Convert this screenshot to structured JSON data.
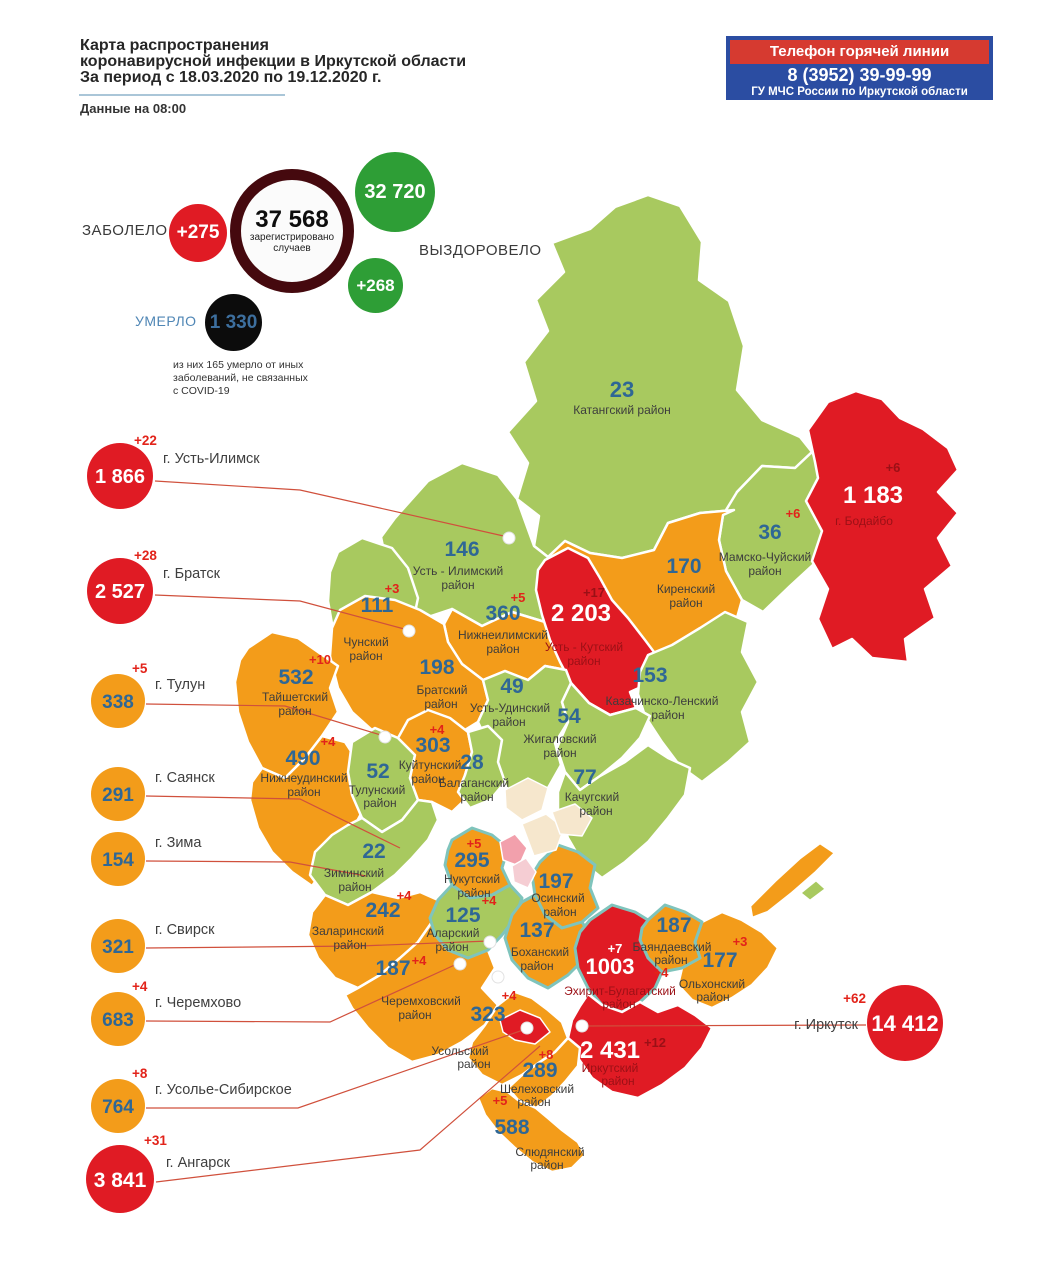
{
  "header": {
    "title": "Карта распространения\nкоронавирусной инфекции в Иркутской области\nЗа период с 18.03.2020 по 19.12.2020 г.",
    "data_note": "Данные на 08:00"
  },
  "hotline": {
    "label": "Телефон горячей линии",
    "phone": "8 (3952) 39-99-99",
    "org": "ГУ МЧС России по Иркутской области",
    "bg_color": "#2b4da2",
    "band_color": "#d63a30"
  },
  "stats": {
    "infected_label": "ЗАБОЛЕЛО",
    "infected_delta": "+275",
    "registered_value": "37 568",
    "registered_caption": "зарегистрировано\nслучаев",
    "recovered_value": "32 720",
    "recovered_label": "ВЫЗДОРОВЕЛО",
    "recovered_delta": "+268",
    "died_label": "УМЕРЛО",
    "died_value": "1 330",
    "died_note": "из них 165 умерло от иных\nзаболеваний, не связанных\nс COVID-19"
  },
  "palette": {
    "low_green": "#a8c95f",
    "medium_orange": "#f39c1a",
    "high_red": "#e01b24",
    "number_blue": "#2f6795",
    "delta_red": "#e2231a",
    "dark_red_text": "#9b1016",
    "uobo_border": "#7fc4bc",
    "hotline_blue": "#2b4da2",
    "ring_maroon": "#45090e"
  },
  "map": {
    "districts": {
      "katangsky": {
        "value": "23",
        "delta": "",
        "line1": "Катангский район",
        "line2": "",
        "fill": "#a8c95f",
        "value_fill": "#2f6795",
        "name_fill": "#3d3d3d",
        "delta_fill": "#e2231a"
      },
      "ust_ilimsky": {
        "value": "146",
        "delta": "",
        "line1": "Усть - Илимский",
        "line2": "район",
        "fill": "#a8c95f",
        "value_fill": "#2f6795",
        "name_fill": "#3d3d3d",
        "delta_fill": "#e2231a"
      },
      "mamsko_chuysky": {
        "value": "36",
        "delta": "+6",
        "line1": "Мамско-Чуйский",
        "line2": "район",
        "fill": "#a8c95f",
        "value_fill": "#2f6795",
        "name_fill": "#3d3d3d",
        "delta_fill": "#e2231a"
      },
      "kirensky": {
        "value": "170",
        "delta": "",
        "line1": "Киренский",
        "line2": "район",
        "fill": "#f39c1a",
        "value_fill": "#2f6795",
        "name_fill": "#3d3d3d",
        "delta_fill": "#e2231a"
      },
      "bodaibinsky": {
        "value": "1 183",
        "delta": "+6",
        "line1": "г. Бодайбо",
        "line2": "",
        "fill": "#e01b24",
        "value_fill": "#ffffff",
        "name_fill": "#9b1016",
        "delta_fill": "#9b1016"
      },
      "chunsky": {
        "value": "111",
        "delta": "+3",
        "line1": "Чунский",
        "line2": "район",
        "fill": "#a8c95f",
        "value_fill": "#2f6795",
        "name_fill": "#3d3d3d",
        "delta_fill": "#e2231a"
      },
      "nizhneilimsky": {
        "value": "360",
        "delta": "+5",
        "line1": "Нижнеилимский",
        "line2": "район",
        "fill": "#f39c1a",
        "value_fill": "#2f6795",
        "name_fill": "#3d3d3d",
        "delta_fill": "#e2231a"
      },
      "ust_kutsky": {
        "value": "2 203",
        "delta": "+17",
        "line1": "Усть - Кутский",
        "line2": "район",
        "fill": "#e01b24",
        "value_fill": "#ffffff",
        "name_fill": "#9b1016",
        "delta_fill": "#9b1016"
      },
      "kazachinsko_lensky": {
        "value": "153",
        "delta": "",
        "line1": "Казачинско-Ленский",
        "line2": "район",
        "fill": "#a8c95f",
        "value_fill": "#2f6795",
        "name_fill": "#3d3d3d",
        "delta_fill": "#e2231a"
      },
      "bratsky": {
        "value": "198",
        "delta": "",
        "line1": "Братский",
        "line2": "район",
        "fill": "#f39c1a",
        "value_fill": "#2f6795",
        "name_fill": "#3d3d3d",
        "delta_fill": "#e2231a"
      },
      "ust_udinsky": {
        "value": "49",
        "delta": "",
        "line1": "Усть-Удинский",
        "line2": "район",
        "fill": "#a8c95f",
        "value_fill": "#2f6795",
        "name_fill": "#3d3d3d",
        "delta_fill": "#e2231a"
      },
      "zhigalovsky": {
        "value": "54",
        "delta": "",
        "line1": "Жигаловский",
        "line2": "район",
        "fill": "#a8c95f",
        "value_fill": "#2f6795",
        "name_fill": "#3d3d3d",
        "delta_fill": "#e2231a"
      },
      "taishetsky": {
        "value": "532",
        "delta": "+10",
        "line1": "Тайшетский",
        "line2": "район",
        "fill": "#f39c1a",
        "value_fill": "#2f6795",
        "name_fill": "#3d3d3d",
        "delta_fill": "#e2231a"
      },
      "nizhneudinsky": {
        "value": "490",
        "delta": "+4",
        "line1": "Нижнеудинский",
        "line2": "район",
        "fill": "#f39c1a",
        "value_fill": "#2f6795",
        "name_fill": "#3d3d3d",
        "delta_fill": "#e2231a"
      },
      "tulunsky": {
        "value": "52",
        "delta": "",
        "line1": "Тулунский",
        "line2": "район",
        "fill": "#a8c95f",
        "value_fill": "#2f6795",
        "name_fill": "#3d3d3d",
        "delta_fill": "#e2231a"
      },
      "kuytunsky": {
        "value": "303",
        "delta": "+4",
        "line1": "Куйтунский",
        "line2": "район",
        "fill": "#f39c1a",
        "value_fill": "#2f6795",
        "name_fill": "#3d3d3d",
        "delta_fill": "#e2231a"
      },
      "balagansky": {
        "value": "28",
        "delta": "",
        "line1": "Балаганский",
        "line2": "район",
        "fill": "#a8c95f",
        "value_fill": "#2f6795",
        "name_fill": "#3d3d3d",
        "delta_fill": "#e2231a"
      },
      "kachugsky": {
        "value": "77",
        "delta": "",
        "line1": "Качугский",
        "line2": "район",
        "fill": "#a8c95f",
        "value_fill": "#2f6795",
        "name_fill": "#3d3d3d",
        "delta_fill": "#e2231a"
      },
      "ziminsky": {
        "value": "22",
        "delta": "",
        "line1": "Зиминский",
        "line2": "район",
        "fill": "#a8c95f",
        "value_fill": "#2f6795",
        "name_fill": "#3d3d3d",
        "delta_fill": "#e2231a"
      },
      "zalarinsky": {
        "value": "242",
        "delta": "+4",
        "line1": "Заларинский",
        "line2": "район",
        "fill": "#f39c1a",
        "value_fill": "#2f6795",
        "name_fill": "#3d3d3d",
        "delta_fill": "#e2231a"
      },
      "nukutsky": {
        "value": "295",
        "delta": "+5",
        "line1": "Нукутский",
        "line2": "район",
        "fill": "#f39c1a",
        "value_fill": "#2f6795",
        "name_fill": "#3d3d3d",
        "delta_fill": "#e2231a"
      },
      "alarsky": {
        "value": "125",
        "delta": "+4",
        "line1": "Аларский",
        "line2": "район",
        "fill": "#a8c95f",
        "value_fill": "#2f6795",
        "name_fill": "#3d3d3d",
        "delta_fill": "#e2231a"
      },
      "osinsky": {
        "value": "197",
        "delta": "",
        "line1": "Осинский",
        "line2": "район",
        "fill": "#f39c1a",
        "value_fill": "#2f6795",
        "name_fill": "#3d3d3d",
        "delta_fill": "#e2231a"
      },
      "bokhansky": {
        "value": "137",
        "delta": "",
        "line1": "Боханский",
        "line2": "район",
        "fill": "#f39c1a",
        "value_fill": "#2f6795",
        "name_fill": "#3d3d3d",
        "delta_fill": "#e2231a"
      },
      "cheremkhovsky": {
        "value": "187",
        "delta": "+4",
        "line1": "Черемховский",
        "line2": "район",
        "fill": "#f39c1a",
        "value_fill": "#2f6795",
        "name_fill": "#3d3d3d",
        "delta_fill": "#e2231a"
      },
      "bayandaevsky": {
        "value": "187",
        "delta": "+4",
        "line1": "Баяндаевский",
        "line2": "район",
        "fill": "#f39c1a",
        "value_fill": "#2f6795",
        "name_fill": "#3d3d3d",
        "delta_fill": "#e2231a"
      },
      "olkhonsky": {
        "value": "177",
        "delta": "+3",
        "line1": "Ольхонский",
        "line2": "район",
        "fill": "#f39c1a",
        "value_fill": "#2f6795",
        "name_fill": "#3d3d3d",
        "delta_fill": "#e2231a"
      },
      "ekhirit_bulagatsky": {
        "value": "1003",
        "delta": "+7",
        "line1": "Эхирит-Булагатский",
        "line2": "район",
        "fill": "#e01b24",
        "value_fill": "#ffffff",
        "name_fill": "#9b1016",
        "delta_fill": "#ffffff"
      },
      "irkutsky": {
        "value": "2 431",
        "delta": "+12",
        "line1": "Иркутский",
        "line2": "район",
        "fill": "#e01b24",
        "value_fill": "#ffffff",
        "name_fill": "#9b1016",
        "delta_fill": "#9b1016"
      },
      "usolsky": {
        "value": "323",
        "delta": "+4",
        "line1": "Усольский",
        "line2": "район",
        "fill": "#f39c1a",
        "value_fill": "#2f6795",
        "name_fill": "#3d3d3d",
        "delta_fill": "#e2231a"
      },
      "shelekhovsky": {
        "value": "289",
        "delta": "+8",
        "line1": "Шелеховский",
        "line2": "район",
        "fill": "#f39c1a",
        "value_fill": "#2f6795",
        "name_fill": "#3d3d3d",
        "delta_fill": "#e2231a"
      },
      "slyudyansky": {
        "value": "588",
        "delta": "+5",
        "line1": "Слюдянский",
        "line2": "район",
        "fill": "#f39c1a",
        "value_fill": "#2f6795",
        "name_fill": "#3d3d3d",
        "delta_fill": "#e2231a"
      }
    }
  },
  "cities": {
    "ust_ilimsk": {
      "value": "1 866",
      "delta": "+22",
      "label": "г. Усть-Илимск",
      "bg": "#e01b24",
      "fg": "#ffffff"
    },
    "bratsk": {
      "value": "2 527",
      "delta": "+28",
      "label": "г. Братск",
      "bg": "#e01b24",
      "fg": "#ffffff"
    },
    "tulun": {
      "value": "338",
      "delta": "+5",
      "label": "г. Тулун",
      "bg": "#f39c1a",
      "fg": "#2f6795"
    },
    "sayansk": {
      "value": "291",
      "delta": "",
      "label": "г. Саянск",
      "bg": "#f39c1a",
      "fg": "#2f6795"
    },
    "zima": {
      "value": "154",
      "delta": "",
      "label": "г. Зима",
      "bg": "#f39c1a",
      "fg": "#2f6795"
    },
    "svirsk": {
      "value": "321",
      "delta": "",
      "label": "г. Свирск",
      "bg": "#f39c1a",
      "fg": "#2f6795"
    },
    "cheremkhovo": {
      "value": "683",
      "delta": "+4",
      "label": "г. Черемхово",
      "bg": "#f39c1a",
      "fg": "#2f6795"
    },
    "usolye_sibirskoye": {
      "value": "764",
      "delta": "+8",
      "label": "г. Усолье-Сибирское",
      "bg": "#f39c1a",
      "fg": "#2f6795"
    },
    "angarsk": {
      "value": "3 841",
      "delta": "+31",
      "label": "г. Ангарск",
      "bg": "#e01b24",
      "fg": "#ffffff"
    },
    "irkutsk": {
      "value": "14 412",
      "delta": "+62",
      "label": "г. Иркутск",
      "bg": "#e01b24",
      "fg": "#ffffff"
    }
  }
}
